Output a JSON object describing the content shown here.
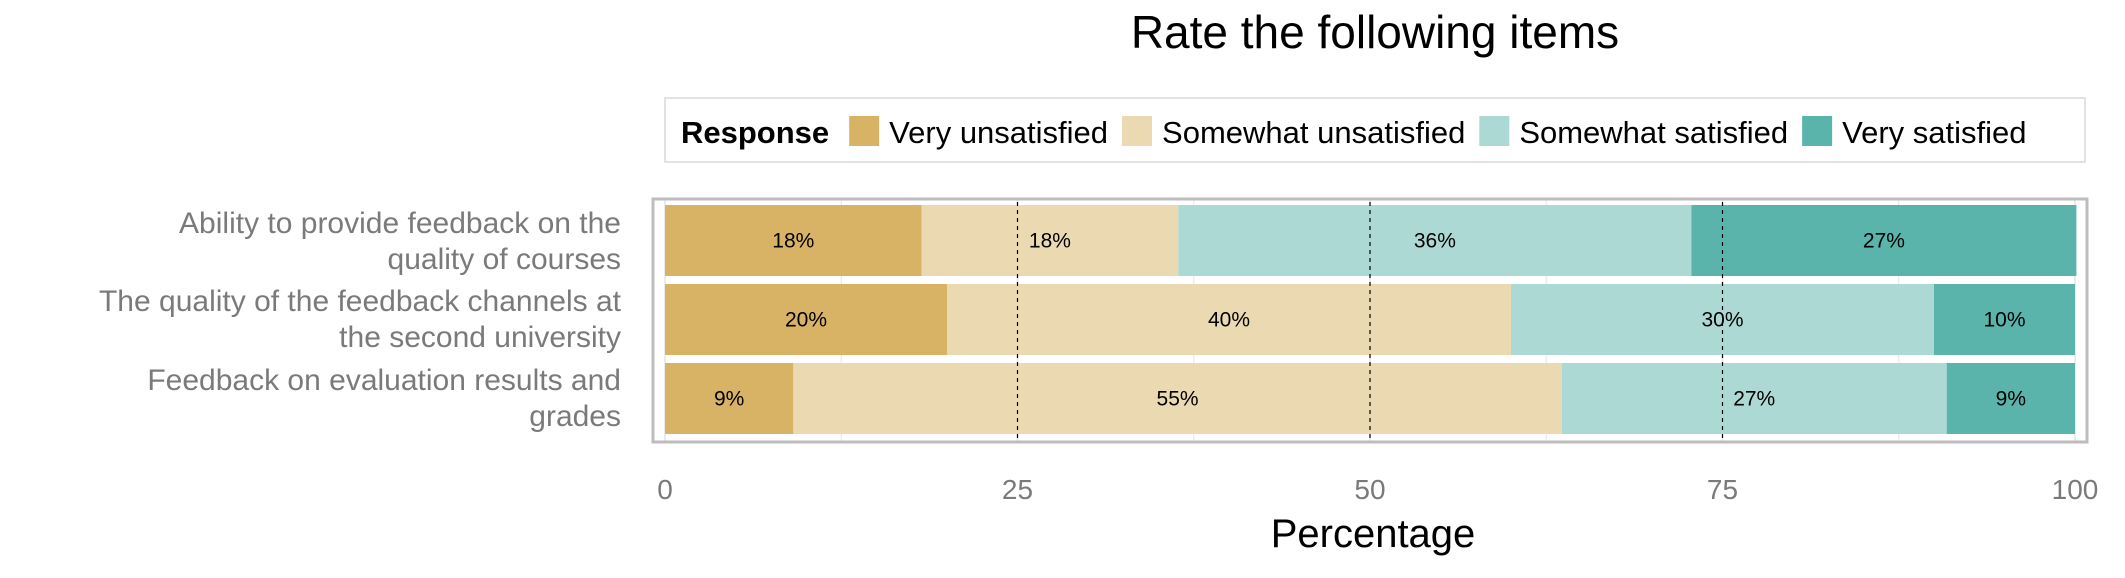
{
  "chart_data": {
    "type": "bar",
    "orientation": "horizontal",
    "stacked": true,
    "title": "Rate the following items",
    "xlabel": "Percentage",
    "ylabel": "",
    "xlim": [
      0,
      100
    ],
    "xticks": [
      0,
      25,
      50,
      75,
      100
    ],
    "grid": true,
    "legend": {
      "title": "Response",
      "position": "top"
    },
    "categories": [
      [
        "Ability to provide feedback on the",
        "quality of courses"
      ],
      [
        "The quality of the feedback channels at",
        "the second university"
      ],
      [
        "Feedback on evaluation results and",
        "grades"
      ]
    ],
    "series": [
      {
        "name": "Very unsatisfied",
        "color": "#D8B365",
        "values": [
          18.2,
          20,
          9.1
        ],
        "labels": [
          "18%",
          "20%",
          "9%"
        ]
      },
      {
        "name": "Somewhat unsatisfied",
        "color": "#EBD9B2",
        "values": [
          18.2,
          40,
          54.5
        ],
        "labels": [
          "18%",
          "40%",
          "55%"
        ]
      },
      {
        "name": "Somewhat satisfied",
        "color": "#ADD9D5",
        "values": [
          36.4,
          30,
          27.3
        ],
        "labels": [
          "36%",
          "30%",
          "27%"
        ]
      },
      {
        "name": "Very satisfied",
        "color": "#5AB4AC",
        "values": [
          27.3,
          10,
          9.1
        ],
        "labels": [
          "27%",
          "10%",
          "9%"
        ]
      }
    ]
  }
}
